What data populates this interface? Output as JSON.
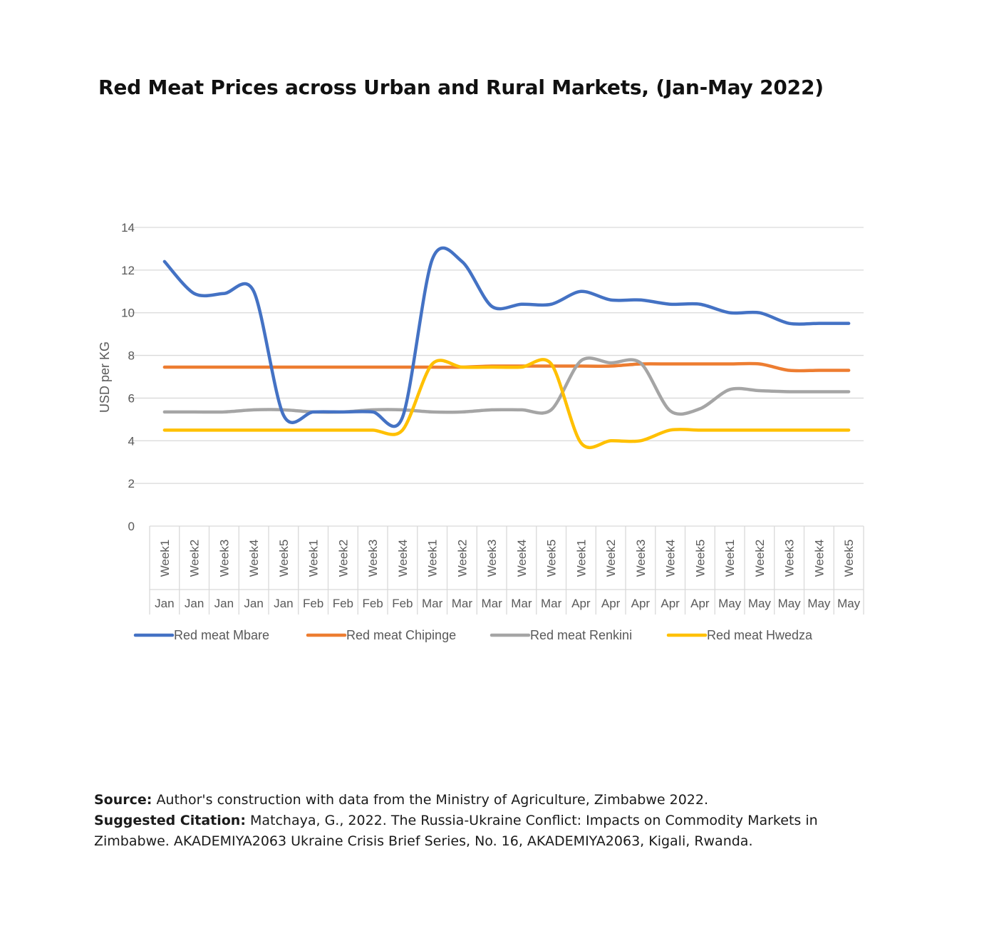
{
  "title": "Red Meat Prices across Urban and Rural Markets, (Jan-May 2022)",
  "source": {
    "label": "Source:",
    "text": "Author's construction with data from the Ministry of Agriculture, Zimbabwe 2022."
  },
  "citation": {
    "label": "Suggested Citation:",
    "text": "Matchaya, G., 2022. The Russia-Ukraine Conflict: Impacts on Commodity Markets in Zimbabwe. AKADEMIYA2063 Ukraine Crisis Brief Series, No. 16, AKADEMIYA2063, Kigali, Rwanda."
  },
  "chart_data": {
    "type": "line",
    "title": "Red Meat Prices across Urban and Rural Markets, (Jan-May 2022)",
    "xlabel": "",
    "ylabel": "USD per KG",
    "ylim": [
      0,
      14
    ],
    "yticks": [
      0,
      2,
      4,
      6,
      8,
      10,
      12,
      14
    ],
    "grid": true,
    "smooth": true,
    "legend_position": "bottom",
    "categories": [
      {
        "week": "Week1",
        "month": "Jan"
      },
      {
        "week": "Week2",
        "month": "Jan"
      },
      {
        "week": "Week3",
        "month": "Jan"
      },
      {
        "week": "Week4",
        "month": "Jan"
      },
      {
        "week": "Week5",
        "month": "Jan"
      },
      {
        "week": "Week1",
        "month": "Feb"
      },
      {
        "week": "Week2",
        "month": "Feb"
      },
      {
        "week": "Week3",
        "month": "Feb"
      },
      {
        "week": "Week4",
        "month": "Feb"
      },
      {
        "week": "Week1",
        "month": "Mar"
      },
      {
        "week": "Week2",
        "month": "Mar"
      },
      {
        "week": "Week3",
        "month": "Mar"
      },
      {
        "week": "Week4",
        "month": "Mar"
      },
      {
        "week": "Week5",
        "month": "Mar"
      },
      {
        "week": "Week1",
        "month": "Apr"
      },
      {
        "week": "Week2",
        "month": "Apr"
      },
      {
        "week": "Week3",
        "month": "Apr"
      },
      {
        "week": "Week4",
        "month": "Apr"
      },
      {
        "week": "Week5",
        "month": "Apr"
      },
      {
        "week": "Week1",
        "month": "May"
      },
      {
        "week": "Week2",
        "month": "May"
      },
      {
        "week": "Week3",
        "month": "May"
      },
      {
        "week": "Week4",
        "month": "May"
      },
      {
        "week": "Week5",
        "month": "May"
      }
    ],
    "series": [
      {
        "name": "Red meat  Mbare",
        "color": "#4472C4",
        "values": [
          12.4,
          10.9,
          10.9,
          11.0,
          5.2,
          5.35,
          5.35,
          5.35,
          5.1,
          12.5,
          12.4,
          10.3,
          10.4,
          10.4,
          11.0,
          10.6,
          10.6,
          10.4,
          10.4,
          10.0,
          10.0,
          9.5,
          9.5,
          9.5
        ]
      },
      {
        "name": "Red meat  Chipinge",
        "color": "#ED7D31",
        "values": [
          7.45,
          7.45,
          7.45,
          7.45,
          7.45,
          7.45,
          7.45,
          7.45,
          7.45,
          7.45,
          7.45,
          7.5,
          7.5,
          7.5,
          7.5,
          7.5,
          7.6,
          7.6,
          7.6,
          7.6,
          7.6,
          7.3,
          7.3,
          7.3
        ]
      },
      {
        "name": "Red meat  Renkini",
        "color": "#A5A5A5",
        "values": [
          5.35,
          5.35,
          5.35,
          5.45,
          5.45,
          5.35,
          5.35,
          5.45,
          5.45,
          5.35,
          5.35,
          5.45,
          5.45,
          5.45,
          7.75,
          7.65,
          7.65,
          5.4,
          5.5,
          6.4,
          6.35,
          6.3,
          6.3,
          6.3
        ]
      },
      {
        "name": "Red meat  Hwedza",
        "color": "#FFC000",
        "values": [
          4.5,
          4.5,
          4.5,
          4.5,
          4.5,
          4.5,
          4.5,
          4.5,
          4.5,
          7.6,
          7.45,
          7.45,
          7.45,
          7.6,
          3.9,
          4.0,
          4.0,
          4.5,
          4.5,
          4.5,
          4.5,
          4.5,
          4.5,
          4.5
        ]
      }
    ]
  }
}
